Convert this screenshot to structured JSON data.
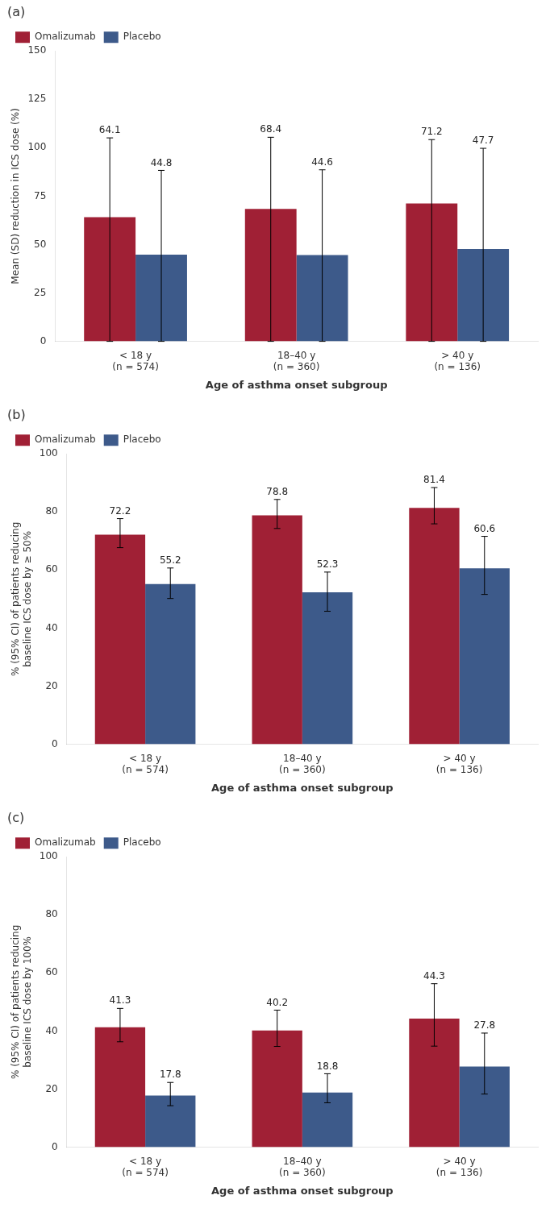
{
  "chart_data": [
    {
      "type": "bar",
      "title": "(a)",
      "categories": [
        "< 18 y\n(n = 574)",
        "18–40 y\n(n = 360)",
        "> 40 y\n(n = 136)"
      ],
      "x_label": "Age of asthma onset subgroup",
      "y_label": "Mean (SD) reduction in ICS dose (%)",
      "series": [
        {
          "name": "Omalizumab",
          "color": "#A02035",
          "values": [
            64.1,
            68.4,
            71.2
          ],
          "error_up": [
            41.0,
            37.0,
            33.0
          ],
          "error_down": [
            64.1,
            68.4,
            71.2
          ]
        },
        {
          "name": "Placebo",
          "color": "#3D5A8A",
          "values": [
            44.8,
            44.6,
            47.7
          ],
          "error_up": [
            43.5,
            44.0,
            52.0
          ],
          "error_down": [
            44.8,
            44.6,
            47.7
          ]
        }
      ],
      "ylim": [
        0,
        150
      ],
      "yticks": [
        0,
        25,
        50,
        75,
        100,
        125,
        150
      ],
      "grid": false,
      "legend": "upper left",
      "data_labels": true
    },
    {
      "type": "bar",
      "title": "(b)",
      "categories": [
        "< 18 y\n(n = 574)",
        "18–40 y\n(n = 360)",
        "> 40 y\n(n = 136)"
      ],
      "x_label": "Age of asthma onset subgroup",
      "y_label": "% (95% CI) of patients reducing\nbaseline ICS dose by ≥ 50%",
      "series": [
        {
          "name": "Omalizumab",
          "color": "#A02035",
          "values": [
            72.2,
            78.8,
            81.4
          ],
          "error_up": [
            5.5,
            5.5,
            7.0
          ],
          "error_down": [
            4.5,
            4.5,
            5.5
          ]
        },
        {
          "name": "Placebo",
          "color": "#3D5A8A",
          "values": [
            55.2,
            52.3,
            60.6
          ],
          "error_up": [
            5.5,
            7.0,
            11.0
          ],
          "error_down": [
            5.0,
            6.5,
            9.0
          ]
        }
      ],
      "ylim": [
        0,
        100
      ],
      "yticks": [
        0,
        20,
        40,
        60,
        80,
        100
      ],
      "grid": false,
      "legend": "upper left",
      "data_labels": true
    },
    {
      "type": "bar",
      "title": "(c)",
      "categories": [
        "< 18 y\n(n = 574)",
        "18–40 y\n(n = 360)",
        "> 40 y\n(n = 136)"
      ],
      "x_label": "Age of asthma onset subgroup",
      "y_label": "% (95% CI) of patients reducing\nbaseline ICS dose by 100%",
      "series": [
        {
          "name": "Omalizumab",
          "color": "#A02035",
          "values": [
            41.3,
            40.2,
            44.3
          ],
          "error_up": [
            6.5,
            7.0,
            12.0
          ],
          "error_down": [
            5.0,
            5.5,
            9.5
          ]
        },
        {
          "name": "Placebo",
          "color": "#3D5A8A",
          "values": [
            17.8,
            18.8,
            27.8
          ],
          "error_up": [
            4.5,
            6.5,
            11.5
          ],
          "error_down": [
            3.5,
            3.5,
            9.5
          ]
        }
      ],
      "ylim": [
        0,
        100
      ],
      "yticks": [
        0,
        20,
        40,
        60,
        80,
        100
      ],
      "grid": false,
      "legend": "upper left",
      "data_labels": true
    }
  ]
}
